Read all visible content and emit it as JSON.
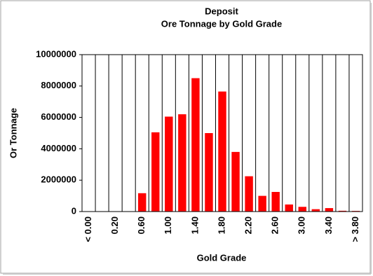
{
  "chart_data": {
    "type": "bar",
    "title": "Deposit",
    "subtitle": "Ore Tonnage by Gold Grade",
    "x_label": "Gold Grade",
    "y_label": "Or Tonnage",
    "categories": [
      "< 0.00",
      null,
      "0.20",
      null,
      "0.60",
      null,
      "1.00",
      null,
      "1.40",
      null,
      "1.80",
      null,
      "2.20",
      null,
      "2.60",
      null,
      "3.00",
      null,
      "3.40",
      null,
      "> 3.80"
    ],
    "values": [
      0,
      0,
      0,
      0,
      1170000,
      5050000,
      6050000,
      6200000,
      8500000,
      5000000,
      7650000,
      3800000,
      2250000,
      1000000,
      1250000,
      450000,
      300000,
      150000,
      220000,
      50000,
      40000
    ],
    "color": "#ff0000",
    "ylim": [
      0,
      10000000
    ],
    "yticks": [
      0,
      2000000,
      4000000,
      6000000,
      8000000,
      10000000
    ],
    "grid": true
  }
}
